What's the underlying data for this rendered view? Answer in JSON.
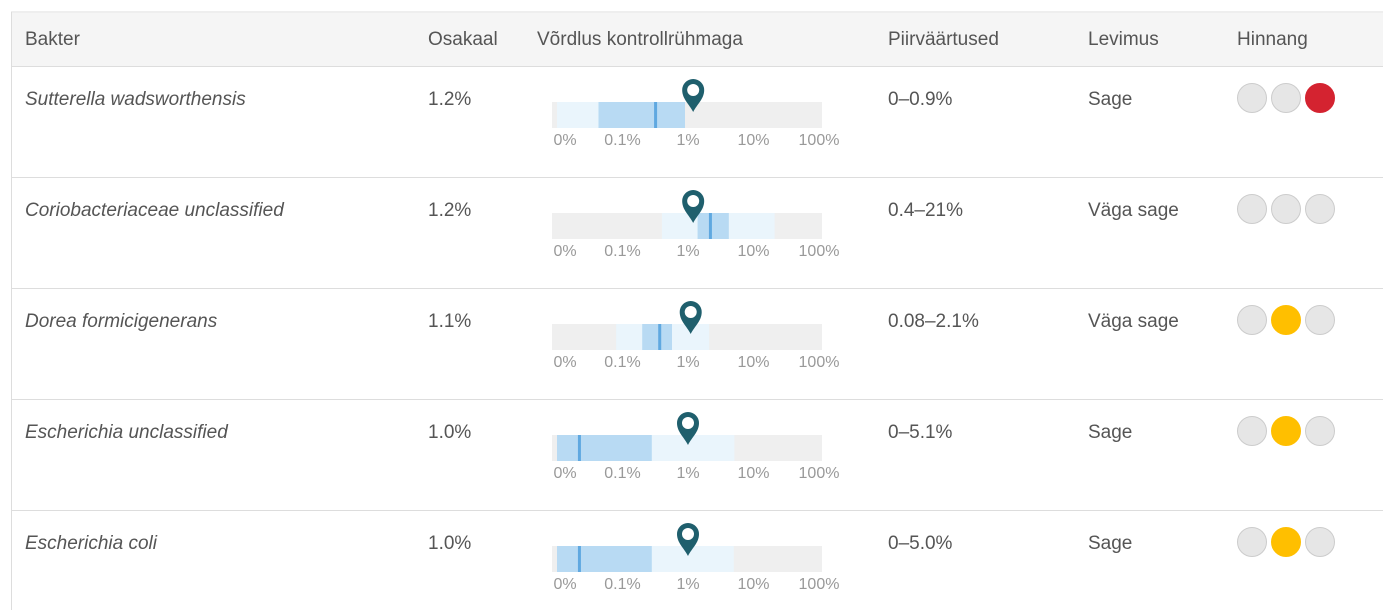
{
  "header": [
    "Bakter",
    "Osakaal",
    "Võrdlus kontrollrühmaga",
    "Piirväärtused",
    "Levimus",
    "Hinnang"
  ],
  "scale": {
    "ticks": [
      {
        "value": 0,
        "label": "0%"
      },
      {
        "value": 0.1,
        "label": "0.1%"
      },
      {
        "value": 1,
        "label": "1%"
      },
      {
        "value": 10,
        "label": "10%"
      },
      {
        "value": 100,
        "label": "100%"
      }
    ]
  },
  "rating_colors": [
    "#d9d9d9",
    "#ffbf00",
    "#d42330"
  ],
  "rows": [
    {
      "name": "Sutterella wadsworthensis",
      "share": "1.2%",
      "share_value": 1.2,
      "range": "0–0.9%",
      "range_low": 0,
      "range_high": 0.9,
      "iqr_low": 0.043,
      "iqr_high": 0.9,
      "median": 0.32,
      "prevalence": "Sage",
      "rating": 2
    },
    {
      "name": "Coriobacteriaceae unclassified",
      "share": "1.2%",
      "share_value": 1.2,
      "range": "0.4–21%",
      "range_low": 0.4,
      "range_high": 21,
      "iqr_low": 1.4,
      "iqr_high": 4.2,
      "median": 2.2,
      "prevalence": "Väga sage",
      "rating": null
    },
    {
      "name": "Dorea formicigenerans",
      "share": "1.1%",
      "share_value": 1.1,
      "range": "0.08–2.1%",
      "range_low": 0.08,
      "range_high": 2.1,
      "iqr_low": 0.2,
      "iqr_high": 0.57,
      "median": 0.37,
      "prevalence": "Väga sage",
      "rating": 1
    },
    {
      "name": "Escherichia unclassified",
      "share": "1.0%",
      "share_value": 1.0,
      "range": "0–5.1%",
      "range_low": 0,
      "range_high": 5.1,
      "iqr_low": 0,
      "iqr_high": 0.28,
      "median": 0.022,
      "prevalence": "Sage",
      "rating": 1
    },
    {
      "name": "Escherichia coli",
      "share": "1.0%",
      "share_value": 1.0,
      "range": "0–5.0%",
      "range_low": 0,
      "range_high": 5.0,
      "iqr_low": 0,
      "iqr_high": 0.28,
      "median": 0.022,
      "prevalence": "Sage",
      "rating": 1
    }
  ]
}
